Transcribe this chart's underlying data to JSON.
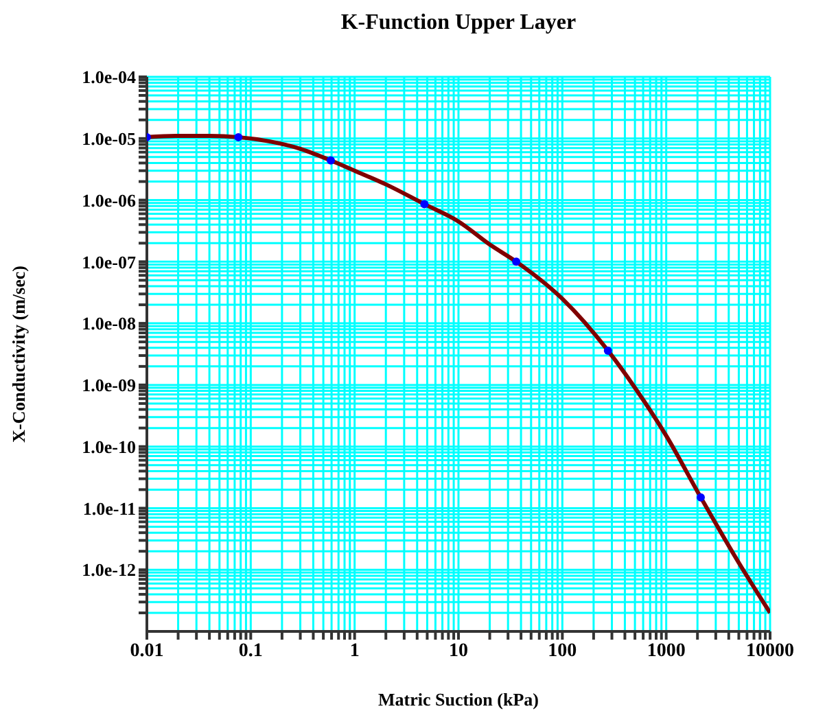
{
  "chart_data": {
    "type": "line",
    "title": "K-Function Upper Layer",
    "xlabel": "Matric Suction (kPa)",
    "ylabel": "X-Conductivity (m/sec)",
    "log": "xy",
    "grid": true,
    "line_style": "solid",
    "xlim": [
      0.01,
      10000
    ],
    "ylim": [
      1e-13,
      0.0001
    ],
    "xticks": [
      0.01,
      {
        "value": 0.02,
        "label": null
      },
      {
        "value": 0.03,
        "label": null
      },
      {
        "value": 0.04,
        "label": null
      },
      {
        "value": 0.05,
        "label": null
      },
      {
        "value": 0.06,
        "label": null
      },
      {
        "value": 0.07,
        "label": null
      },
      {
        "value": 0.08,
        "label": null
      },
      {
        "value": 0.09,
        "label": null
      },
      0.1,
      {
        "value": 0.2,
        "label": null
      },
      {
        "value": 0.3,
        "label": null
      },
      {
        "value": 0.4,
        "label": null
      },
      {
        "value": 0.5,
        "label": null
      },
      {
        "value": 0.6,
        "label": null
      },
      {
        "value": 0.7,
        "label": null
      },
      {
        "value": 0.8,
        "label": null
      },
      {
        "value": 0.9,
        "label": null
      },
      1,
      {
        "value": 2,
        "label": null
      },
      {
        "value": 3,
        "label": null
      },
      {
        "value": 4,
        "label": null
      },
      {
        "value": 5,
        "label": null
      },
      {
        "value": 6,
        "label": null
      },
      {
        "value": 7,
        "label": null
      },
      {
        "value": 8,
        "label": null
      },
      {
        "value": 9,
        "label": null
      },
      10,
      {
        "value": 20,
        "label": null
      },
      {
        "value": 30,
        "label": null
      },
      {
        "value": 40,
        "label": null
      },
      {
        "value": 50,
        "label": null
      },
      {
        "value": 60,
        "label": null
      },
      {
        "value": 70,
        "label": null
      },
      {
        "value": 80,
        "label": null
      },
      {
        "value": 90,
        "label": null
      },
      100,
      {
        "value": 200,
        "label": null
      },
      {
        "value": 300,
        "label": null
      },
      {
        "value": 400,
        "label": null
      },
      {
        "value": 500,
        "label": null
      },
      {
        "value": 600,
        "label": null
      },
      {
        "value": 700,
        "label": null
      },
      {
        "value": 800,
        "label": null
      },
      {
        "value": 900,
        "label": null
      },
      1000,
      {
        "value": 2000,
        "label": null
      },
      {
        "value": 3000,
        "label": null
      },
      {
        "value": 4000,
        "label": null
      },
      {
        "value": 5000,
        "label": null
      },
      {
        "value": 6000,
        "label": null
      },
      {
        "value": 7000,
        "label": null
      },
      {
        "value": 8000,
        "label": null
      },
      {
        "value": 9000,
        "label": null
      },
      10000
    ],
    "yticks": [
      {
        "value": 2e-13,
        "label": null
      },
      {
        "value": 3e-13,
        "label": null
      },
      {
        "value": 4e-13,
        "label": null
      },
      {
        "value": 5e-13,
        "label": null
      },
      {
        "value": 6e-13,
        "label": null
      },
      {
        "value": 7e-13,
        "label": null
      },
      {
        "value": 8e-13,
        "label": null
      },
      {
        "value": 9e-13,
        "label": null
      },
      {
        "value": 1e-12,
        "label": "1.0e-12"
      },
      {
        "value": 2e-12,
        "label": null
      },
      {
        "value": 3e-12,
        "label": null
      },
      {
        "value": 4e-12,
        "label": null
      },
      {
        "value": 5e-12,
        "label": null
      },
      {
        "value": 6e-12,
        "label": null
      },
      {
        "value": 7e-12,
        "label": null
      },
      {
        "value": 8e-12,
        "label": null
      },
      {
        "value": 9e-12,
        "label": null
      },
      {
        "value": 1e-11,
        "label": "1.0e-11"
      },
      {
        "value": 2e-11,
        "label": null
      },
      {
        "value": 3e-11,
        "label": null
      },
      {
        "value": 4e-11,
        "label": null
      },
      {
        "value": 5e-11,
        "label": null
      },
      {
        "value": 6e-11,
        "label": null
      },
      {
        "value": 7e-11,
        "label": null
      },
      {
        "value": 8e-11,
        "label": null
      },
      {
        "value": 9e-11,
        "label": null
      },
      {
        "value": 1e-10,
        "label": "1.0e-10"
      },
      {
        "value": 2e-10,
        "label": null
      },
      {
        "value": 3e-10,
        "label": null
      },
      {
        "value": 4e-10,
        "label": null
      },
      {
        "value": 5e-10,
        "label": null
      },
      {
        "value": 6e-10,
        "label": null
      },
      {
        "value": 7e-10,
        "label": null
      },
      {
        "value": 8e-10,
        "label": null
      },
      {
        "value": 9e-10,
        "label": null
      },
      {
        "value": 1e-09,
        "label": "1.0e-09"
      },
      {
        "value": 2e-09,
        "label": null
      },
      {
        "value": 3e-09,
        "label": null
      },
      {
        "value": 4e-09,
        "label": null
      },
      {
        "value": 5e-09,
        "label": null
      },
      {
        "value": 6e-09,
        "label": null
      },
      {
        "value": 7e-09,
        "label": null
      },
      {
        "value": 8e-09,
        "label": null
      },
      {
        "value": 9e-09,
        "label": null
      },
      {
        "value": 1e-08,
        "label": "1.0e-08"
      },
      {
        "value": 2e-08,
        "label": null
      },
      {
        "value": 3e-08,
        "label": null
      },
      {
        "value": 4e-08,
        "label": null
      },
      {
        "value": 5e-08,
        "label": null
      },
      {
        "value": 6e-08,
        "label": null
      },
      {
        "value": 7e-08,
        "label": null
      },
      {
        "value": 8e-08,
        "label": null
      },
      {
        "value": 9e-08,
        "label": null
      },
      {
        "value": 1e-07,
        "label": "1.0e-07"
      },
      {
        "value": 2e-07,
        "label": null
      },
      {
        "value": 3e-07,
        "label": null
      },
      {
        "value": 4e-07,
        "label": null
      },
      {
        "value": 5e-07,
        "label": null
      },
      {
        "value": 6e-07,
        "label": null
      },
      {
        "value": 7e-07,
        "label": null
      },
      {
        "value": 8e-07,
        "label": null
      },
      {
        "value": 9e-07,
        "label": null
      },
      {
        "value": 1e-06,
        "label": "1.0e-06"
      },
      {
        "value": 2e-06,
        "label": null
      },
      {
        "value": 3e-06,
        "label": null
      },
      {
        "value": 4e-06,
        "label": null
      },
      {
        "value": 5e-06,
        "label": null
      },
      {
        "value": 6e-06,
        "label": null
      },
      {
        "value": 7e-06,
        "label": null
      },
      {
        "value": 8e-06,
        "label": null
      },
      {
        "value": 9e-06,
        "label": null
      },
      {
        "value": 1e-05,
        "label": "1.0e-05"
      },
      {
        "value": 2e-05,
        "label": null
      },
      {
        "value": 3e-05,
        "label": null
      },
      {
        "value": 4e-05,
        "label": null
      },
      {
        "value": 5e-05,
        "label": null
      },
      {
        "value": 6e-05,
        "label": null
      },
      {
        "value": 7e-05,
        "label": null
      },
      {
        "value": 8e-05,
        "label": null
      },
      {
        "value": 9e-05,
        "label": null
      },
      {
        "value": 0.0001,
        "label": "1.0e-04"
      }
    ],
    "series": [
      {
        "color": "#800000",
        "x": [
          0.01,
          0.02,
          0.04,
          0.076,
          0.15,
          0.3,
          0.59,
          1,
          2,
          4.7,
          10,
          20,
          36,
          100,
          275,
          500,
          1000,
          2150,
          5000,
          10000
        ],
        "values": [
          1.05e-05,
          1.1e-05,
          1.1e-05,
          1.05e-05,
          9e-06,
          6.8e-06,
          4.4e-06,
          3e-06,
          1.8e-06,
          8.6e-07,
          4.5e-07,
          1.9e-07,
          1e-07,
          2.5e-08,
          3.6e-09,
          9e-10,
          1.5e-10,
          1.5e-11,
          1.3e-12,
          2e-13
        ]
      },
      {
        "type": "scatter",
        "marker": "circle",
        "color": "#0000ff",
        "x": [
          0.01,
          0.076,
          0.59,
          4.7,
          36,
          275,
          2150
        ],
        "values": [
          1.05e-05,
          1.05e-05,
          4.4e-06,
          8.6e-07,
          1e-07,
          3.6e-09,
          1.5e-11
        ]
      }
    ]
  }
}
